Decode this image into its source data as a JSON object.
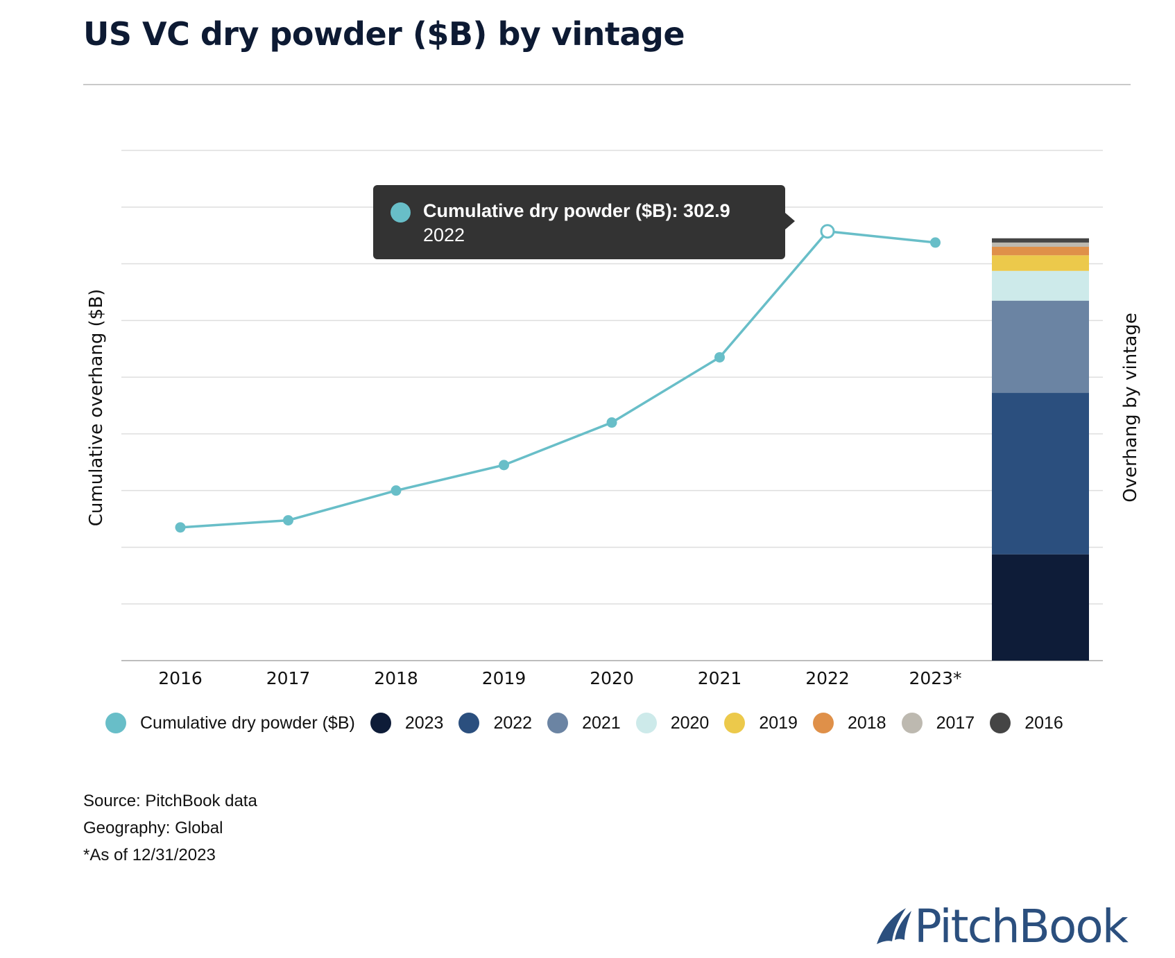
{
  "title": "US VC dry powder ($B) by vintage",
  "colors": {
    "line": "#68bec8",
    "v2023": "#0e1c38",
    "v2022": "#2b4f7e",
    "v2021": "#6b84a3",
    "v2020": "#cdeaea",
    "v2019": "#ecc94b",
    "v2018": "#df9049",
    "v2017": "#bdb9b0",
    "v2016": "#454545",
    "grid": "#dedede",
    "axis": "#bdbdbd"
  },
  "chart_data": {
    "type": "line",
    "title": "US VC dry powder ($B) by vintage",
    "ylabel": "Cumulative overhang ($B)",
    "y2label": "Overhang by vintage",
    "categories": [
      "2016",
      "2017",
      "2018",
      "2019",
      "2020",
      "2021",
      "2022",
      "2023*"
    ],
    "series": [
      {
        "name": "Cumulative dry powder ($B)",
        "values": [
          94,
          99,
          120,
          138,
          168,
          214,
          302.9,
          295
        ]
      }
    ],
    "ylim": [
      0,
      360
    ],
    "grid": true,
    "legend_position": "bottom",
    "stacked_bar": {
      "name": "Overhang by vintage",
      "segments": [
        {
          "name": "2023",
          "value": 75
        },
        {
          "name": "2022",
          "value": 114
        },
        {
          "name": "2021",
          "value": 65
        },
        {
          "name": "2020",
          "value": 21
        },
        {
          "name": "2019",
          "value": 11
        },
        {
          "name": "2018",
          "value": 6
        },
        {
          "name": "2017",
          "value": 3
        },
        {
          "name": "2016",
          "value": 3
        }
      ]
    },
    "tooltip": {
      "series": "Cumulative dry powder ($B)",
      "label": "Cumulative dry powder ($B): 302.9",
      "category": "2022"
    }
  },
  "legend": [
    {
      "label": "Cumulative dry powder ($B)",
      "color": "#68bec8"
    },
    {
      "label": "2023",
      "color": "#0e1c38"
    },
    {
      "label": "2022",
      "color": "#2b4f7e"
    },
    {
      "label": "2021",
      "color": "#6b84a3"
    },
    {
      "label": "2020",
      "color": "#cdeaea"
    },
    {
      "label": "2019",
      "color": "#ecc94b"
    },
    {
      "label": "2018",
      "color": "#df9049"
    },
    {
      "label": "2017",
      "color": "#bdb9b0"
    },
    {
      "label": "2016",
      "color": "#454545"
    }
  ],
  "notes": {
    "source": "Source: PitchBook data",
    "geography": "Geography: Global",
    "asof": "*As of 12/31/2023"
  },
  "logo": {
    "text": "PitchBook",
    "icon": "pitchbook-sail-icon"
  }
}
